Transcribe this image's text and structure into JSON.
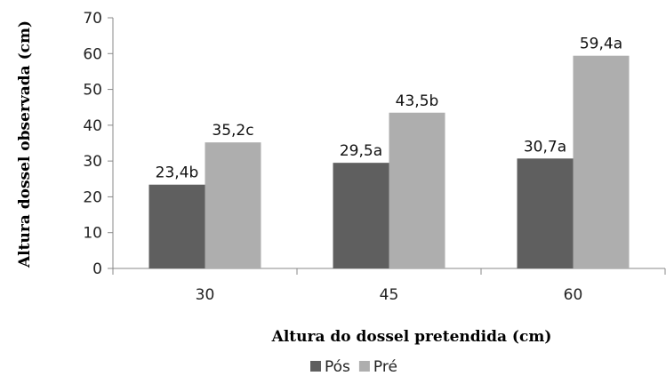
{
  "chart_data": {
    "type": "bar",
    "categories": [
      "30",
      "45",
      "60"
    ],
    "xlabel": "Altura do dossel pretendida (cm)",
    "ylabel": "Altura dossel observada (cm)",
    "ylim": [
      0,
      70
    ],
    "yticks": [
      0,
      10,
      20,
      30,
      40,
      50,
      60,
      70
    ],
    "grid": false,
    "legend_position": "bottom",
    "series": [
      {
        "name": "Pós",
        "color": "#5f5f5f",
        "values": [
          23.4,
          29.5,
          30.7
        ],
        "labels": [
          "23,4b",
          "29,5a",
          "30,7a"
        ]
      },
      {
        "name": "Pré",
        "color": "#aeaeae",
        "values": [
          35.2,
          43.5,
          59.4
        ],
        "labels": [
          "35,2c",
          "43,5b",
          "59,4a"
        ]
      }
    ]
  }
}
